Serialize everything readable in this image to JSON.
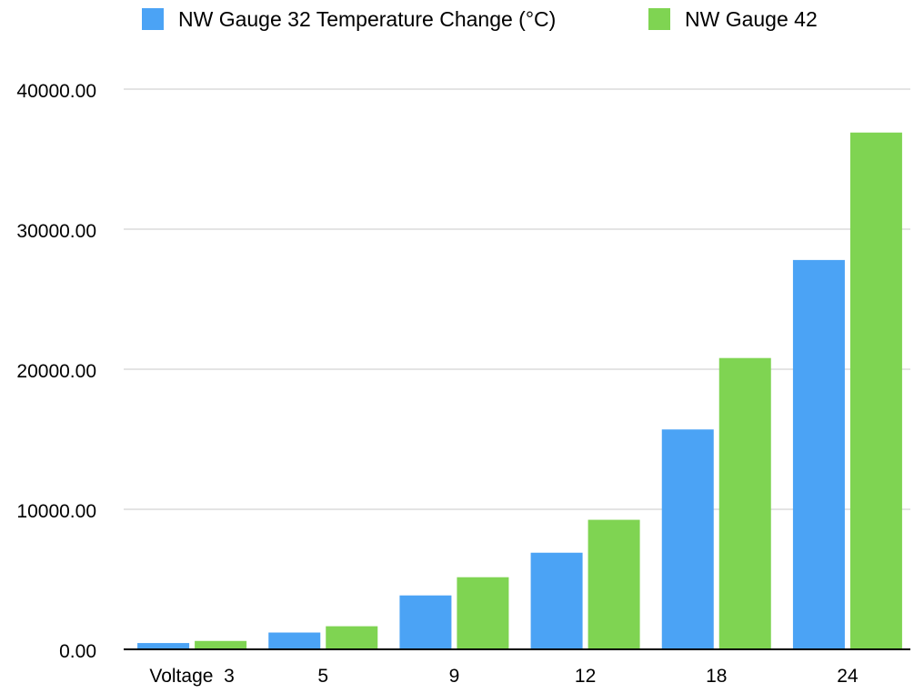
{
  "chart_data": {
    "type": "bar",
    "categories": [
      "Voltage  3",
      "5",
      "9",
      "12",
      "18",
      "24"
    ],
    "series": [
      {
        "name": "NW Gauge 32 Temperature Change (°C)",
        "color": "#4ba3f5",
        "values": [
          450,
          1200,
          3850,
          6900,
          15700,
          27800
        ]
      },
      {
        "name": "NW Gauge 42",
        "color": "#7fd452",
        "values": [
          600,
          1650,
          5150,
          9250,
          20800,
          36900
        ]
      }
    ],
    "y_ticks": [
      "0.00",
      "10000.00",
      "20000.00",
      "30000.00",
      "40000.00"
    ],
    "ylim": [
      0,
      40000
    ],
    "grid": true,
    "legend_position": "top"
  }
}
